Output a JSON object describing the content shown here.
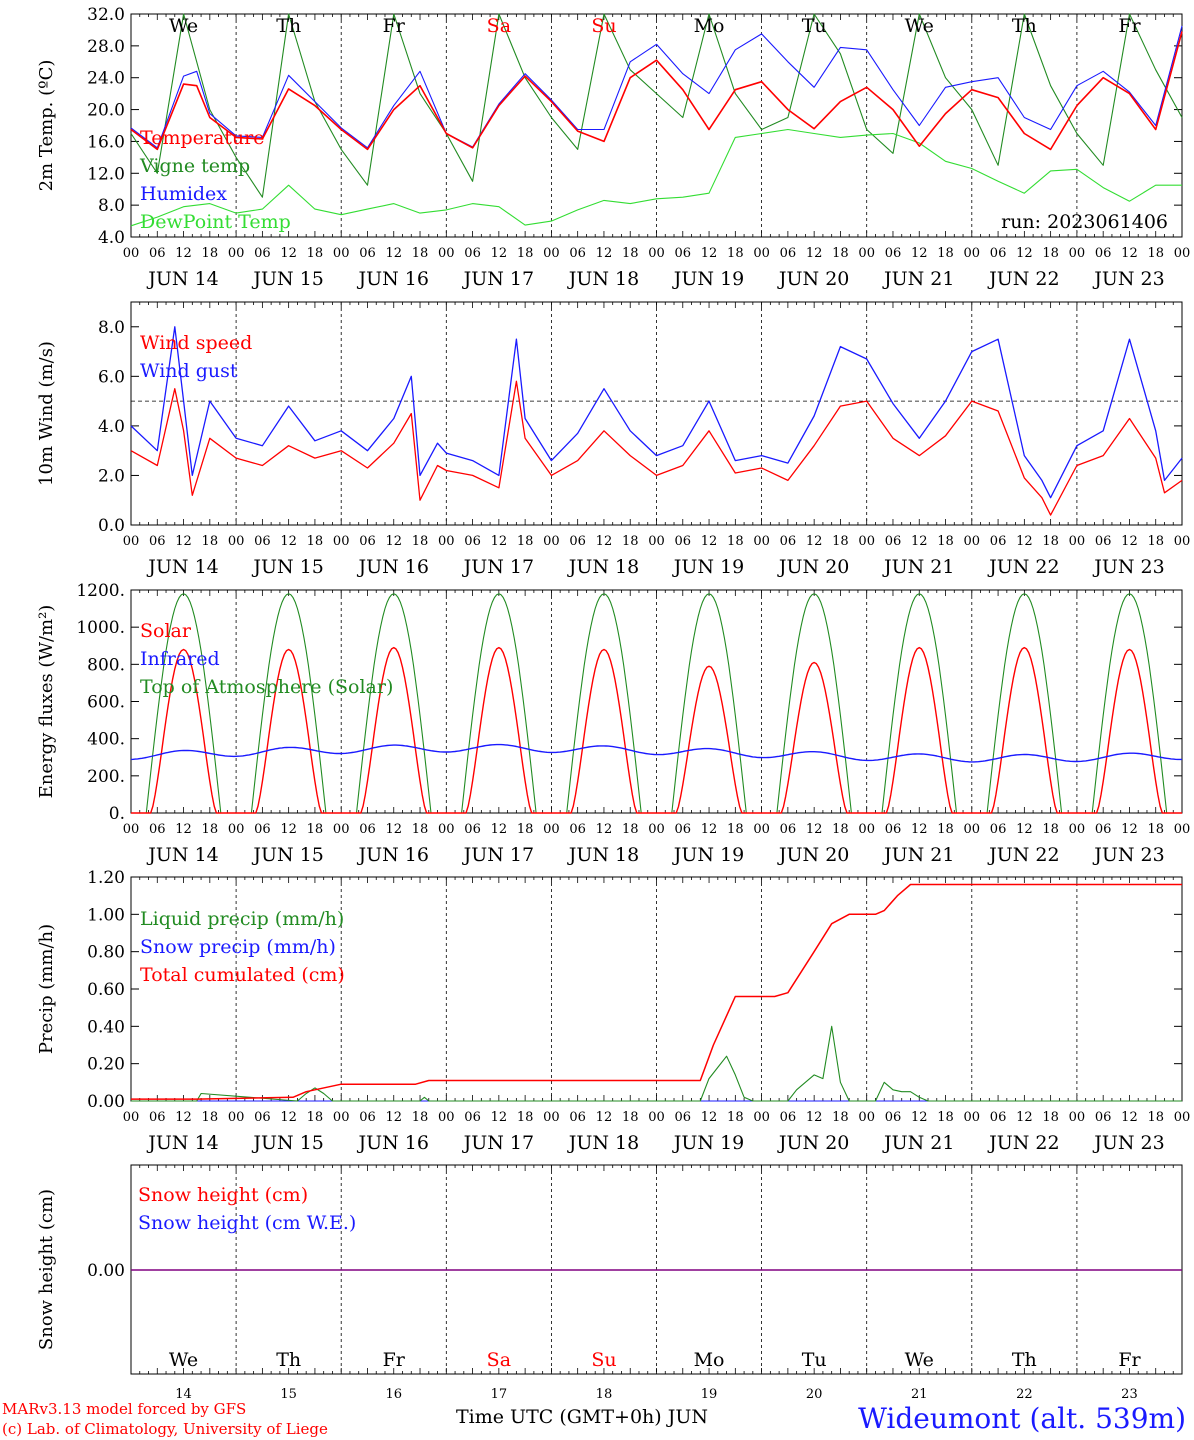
{
  "footer": {
    "model": "MARv3.13 model forced by GFS",
    "lab": "(c) Lab. of Climatology, University of Liege",
    "time_axis": "Time UTC (GMT+0h) JUN",
    "station": "Wideumont (alt. 539m)"
  },
  "run_label": "run: 2023061406",
  "colors": {
    "red": "#ff0000",
    "green": "#228b22",
    "blue": "#1a1aff",
    "lime": "#33dd33",
    "purple": "#800080",
    "weekend": "#ff0000"
  },
  "chart_data": [
    {
      "type": "line",
      "id": "temperature",
      "ylabel": "2m Temp. (ºC)",
      "ylim": [
        4,
        32
      ],
      "yticks": [
        "4.0",
        "8.0",
        "12.0",
        "16.0",
        "20.0",
        "24.0",
        "28.0",
        "32.0"
      ],
      "ytick_values": [
        4,
        8,
        12,
        16,
        20,
        24,
        28,
        32
      ],
      "weekdays": [
        "We",
        "Th",
        "Fr",
        "Sa",
        "Su",
        "Mo",
        "Tu",
        "We",
        "Th",
        "Fr"
      ],
      "weekend_index": [
        3,
        4
      ],
      "x_unit": "hours since JUN 14 00 UTC",
      "series": [
        {
          "name": "Temperature",
          "color": "red",
          "x": [
            0,
            6,
            12,
            15,
            18,
            24,
            30,
            36,
            42,
            48,
            54,
            60,
            66,
            72,
            78,
            84,
            90,
            96,
            102,
            108,
            114,
            120,
            126,
            132,
            138,
            144,
            150,
            156,
            162,
            168,
            174,
            180,
            186,
            192,
            198,
            204,
            210,
            216,
            222,
            228,
            234,
            240
          ],
          "y": [
            17.5,
            15,
            23.2,
            23,
            19,
            16.5,
            16.3,
            22.6,
            20.5,
            17.5,
            15,
            20,
            23,
            17,
            15.2,
            20.5,
            24.2,
            21,
            17.3,
            16,
            24,
            26.2,
            22.5,
            17.5,
            22.5,
            23.5,
            20,
            17.6,
            21,
            22.8,
            20,
            15.4,
            19.5,
            22.5,
            21.5,
            17,
            15,
            20.5,
            24,
            22,
            17.5,
            29.8
          ]
        },
        {
          "name": "Vigne temp",
          "color": "green",
          "x": [
            0,
            6,
            12,
            18,
            24,
            30,
            36,
            42,
            48,
            54,
            60,
            66,
            72,
            78,
            84,
            90,
            96,
            102,
            108,
            114,
            120,
            126,
            132,
            138,
            144,
            150,
            156,
            162,
            168,
            174,
            180,
            186,
            192,
            198,
            204,
            210,
            216,
            222,
            228,
            234,
            240
          ],
          "y": [
            17,
            12,
            32,
            20,
            14,
            9,
            32,
            21,
            15,
            10.5,
            32,
            22,
            17,
            11,
            32,
            24,
            19,
            15,
            32,
            25,
            22,
            19,
            32,
            22,
            17.5,
            19,
            32,
            27,
            17.5,
            14.5,
            32,
            24,
            20,
            13,
            32,
            23,
            17,
            13,
            32,
            25,
            19
          ]
        },
        {
          "name": "Humidex",
          "color": "blue",
          "x": [
            0,
            6,
            12,
            15,
            18,
            24,
            30,
            36,
            42,
            48,
            54,
            60,
            66,
            72,
            78,
            84,
            90,
            96,
            102,
            108,
            114,
            120,
            126,
            132,
            138,
            144,
            150,
            156,
            162,
            168,
            174,
            180,
            186,
            192,
            198,
            204,
            210,
            216,
            222,
            228,
            234,
            240
          ],
          "y": [
            17.7,
            15.2,
            24.2,
            24.8,
            19.5,
            16.7,
            16.5,
            24.3,
            21,
            17.7,
            15.2,
            20.5,
            24.8,
            17,
            15.3,
            20.7,
            24.5,
            21.2,
            17.5,
            17.5,
            26,
            28.2,
            24.5,
            22,
            27.5,
            29.5,
            26,
            22.8,
            27.8,
            27.5,
            22.5,
            18,
            22.8,
            23.5,
            24,
            19,
            17.5,
            23,
            24.8,
            22.2,
            18,
            30.5
          ]
        },
        {
          "name": "DewPoint Temp",
          "color": "lime",
          "x": [
            0,
            6,
            12,
            18,
            24,
            30,
            36,
            42,
            48,
            54,
            60,
            66,
            72,
            78,
            84,
            90,
            96,
            102,
            108,
            114,
            120,
            126,
            132,
            138,
            144,
            150,
            156,
            162,
            168,
            174,
            180,
            186,
            192,
            198,
            204,
            210,
            216,
            222,
            228,
            234,
            240
          ],
          "y": [
            5.4,
            6.5,
            7.8,
            8.2,
            7,
            7.5,
            10.5,
            7.5,
            6.8,
            7.5,
            8.2,
            7,
            7.4,
            8.2,
            7.8,
            5.5,
            6,
            7.4,
            8.6,
            8.2,
            8.8,
            9,
            9.5,
            16.5,
            17,
            17.5,
            17,
            16.5,
            16.8,
            17,
            15.8,
            13.5,
            12.6,
            11,
            9.5,
            12.3,
            12.5,
            10.2,
            8.5,
            10.5,
            10.5
          ]
        }
      ]
    },
    {
      "type": "line",
      "id": "wind",
      "ylabel": "10m Wind (m/s)",
      "ylim": [
        0,
        9
      ],
      "yticks": [
        "0.0",
        "2.0",
        "4.0",
        "6.0",
        "8.0"
      ],
      "ytick_values": [
        0,
        2,
        4,
        6,
        8
      ],
      "reference_line": 5,
      "series": [
        {
          "name": "Wind speed",
          "color": "red",
          "x": [
            0,
            6,
            10,
            12,
            14,
            18,
            24,
            30,
            36,
            42,
            48,
            54,
            60,
            64,
            66,
            70,
            72,
            78,
            84,
            88,
            90,
            96,
            102,
            108,
            114,
            120,
            126,
            132,
            138,
            144,
            150,
            156,
            162,
            168,
            174,
            180,
            186,
            192,
            198,
            204,
            208,
            210,
            216,
            222,
            228,
            234,
            236,
            240
          ],
          "y": [
            3,
            2.4,
            5.5,
            3.8,
            1.2,
            3.5,
            2.7,
            2.4,
            3.2,
            2.7,
            3,
            2.3,
            3.3,
            4.5,
            1,
            2.4,
            2.2,
            2,
            1.5,
            5.8,
            3.5,
            2,
            2.6,
            3.8,
            2.8,
            2,
            2.4,
            3.8,
            2.1,
            2.3,
            1.8,
            3.2,
            4.8,
            5,
            3.5,
            2.8,
            3.6,
            5,
            4.6,
            1.9,
            1.1,
            0.4,
            2.4,
            2.8,
            4.3,
            2.7,
            1.3,
            1.8
          ]
        },
        {
          "name": "Wind gust",
          "color": "blue",
          "x": [
            0,
            6,
            10,
            12,
            14,
            18,
            24,
            30,
            36,
            42,
            48,
            54,
            60,
            64,
            66,
            70,
            72,
            78,
            84,
            88,
            90,
            96,
            102,
            108,
            114,
            120,
            126,
            132,
            138,
            144,
            150,
            156,
            162,
            168,
            174,
            180,
            186,
            192,
            198,
            204,
            208,
            210,
            216,
            222,
            228,
            234,
            236,
            240
          ],
          "y": [
            4,
            3,
            8,
            5,
            2,
            5,
            3.5,
            3.2,
            4.8,
            3.4,
            3.8,
            3,
            4.3,
            6,
            2,
            3.3,
            2.9,
            2.6,
            2,
            7.5,
            4.3,
            2.6,
            3.7,
            5.5,
            3.8,
            2.8,
            3.2,
            5,
            2.6,
            2.8,
            2.5,
            4.4,
            7.2,
            6.7,
            4.9,
            3.5,
            5,
            7,
            7.5,
            2.8,
            1.8,
            1.1,
            3.2,
            3.8,
            7.5,
            3.8,
            1.8,
            2.7
          ]
        }
      ]
    },
    {
      "type": "line",
      "id": "energy",
      "ylabel": "Energy fluxes (W/m²)",
      "ylim": [
        0,
        1200
      ],
      "yticks": [
        "0.",
        "200.",
        "400.",
        "600.",
        "800.",
        "1000.",
        "1200."
      ],
      "ytick_values": [
        0,
        200,
        400,
        600,
        800,
        1000,
        1200
      ],
      "solar_peaks": [
        880,
        880,
        890,
        890,
        880,
        790,
        810,
        890,
        890,
        880
      ],
      "infrared_range": [
        290,
        380
      ],
      "toa_peak": 1180,
      "series": [
        {
          "name": "Solar",
          "color": "red"
        },
        {
          "name": "Infrared",
          "color": "blue"
        },
        {
          "name": "Top of Atmosphere (Solar)",
          "color": "green"
        }
      ]
    },
    {
      "type": "line",
      "id": "precip",
      "ylabel": "Precip (mm/h)",
      "ylim": [
        0,
        1.2
      ],
      "yticks": [
        "0.00",
        "0.20",
        "0.40",
        "0.60",
        "0.80",
        "1.00",
        "1.20"
      ],
      "ytick_values": [
        0,
        0.2,
        0.4,
        0.6,
        0.8,
        1.0,
        1.2
      ],
      "series": [
        {
          "name": "Liquid precip (mm/h)",
          "color": "green",
          "x": [
            0,
            15,
            16,
            38,
            40,
            42,
            44,
            46,
            66,
            67,
            68,
            130,
            132,
            134,
            136,
            138,
            140,
            142,
            150,
            152,
            154,
            156,
            158,
            160,
            162,
            164,
            170,
            172,
            174,
            176,
            178,
            180,
            182,
            240
          ],
          "y": [
            0,
            0,
            0.04,
            0,
            0.04,
            0.07,
            0.04,
            0,
            0,
            0.02,
            0,
            0,
            0.12,
            0.18,
            0.24,
            0.14,
            0.02,
            0,
            0,
            0.06,
            0.1,
            0.14,
            0.12,
            0.4,
            0.1,
            0,
            0,
            0.1,
            0.06,
            0.05,
            0.05,
            0.02,
            0,
            0
          ]
        },
        {
          "name": "Snow precip (mm/h)",
          "color": "blue",
          "x": [
            0,
            240
          ],
          "y": [
            0,
            0
          ]
        },
        {
          "name": "Total cumulated (cm)",
          "color": "red",
          "x": [
            0,
            15,
            37,
            40,
            48,
            65,
            68,
            130,
            133,
            138,
            147,
            150,
            156,
            160,
            164,
            170,
            172,
            175,
            178,
            240
          ],
          "y": [
            0.01,
            0.01,
            0.02,
            0.05,
            0.09,
            0.09,
            0.11,
            0.11,
            0.3,
            0.56,
            0.56,
            0.58,
            0.8,
            0.95,
            1.0,
            1.0,
            1.02,
            1.1,
            1.16,
            1.16
          ]
        }
      ]
    },
    {
      "type": "line",
      "id": "snow",
      "ylabel": "Snow height (cm)",
      "ytick": "0.00",
      "series": [
        {
          "name": "Snow height (cm)",
          "color": "red",
          "x": [
            0,
            240
          ],
          "y": [
            0,
            0
          ]
        },
        {
          "name": "Snow height (cm W.E.)",
          "color": "blue",
          "x": [
            0,
            240
          ],
          "y": [
            0,
            0
          ]
        }
      ]
    }
  ],
  "xaxis": {
    "hour_labels": [
      "00",
      "06",
      "12",
      "18"
    ],
    "final_label": "00",
    "dates": [
      "JUN 14",
      "JUN 15",
      "JUN 16",
      "JUN 17",
      "JUN 18",
      "JUN 19",
      "JUN 20",
      "JUN 21",
      "JUN 22",
      "JUN 23"
    ],
    "day_numbers": [
      "14",
      "15",
      "16",
      "17",
      "18",
      "19",
      "20",
      "21",
      "22",
      "23"
    ]
  }
}
